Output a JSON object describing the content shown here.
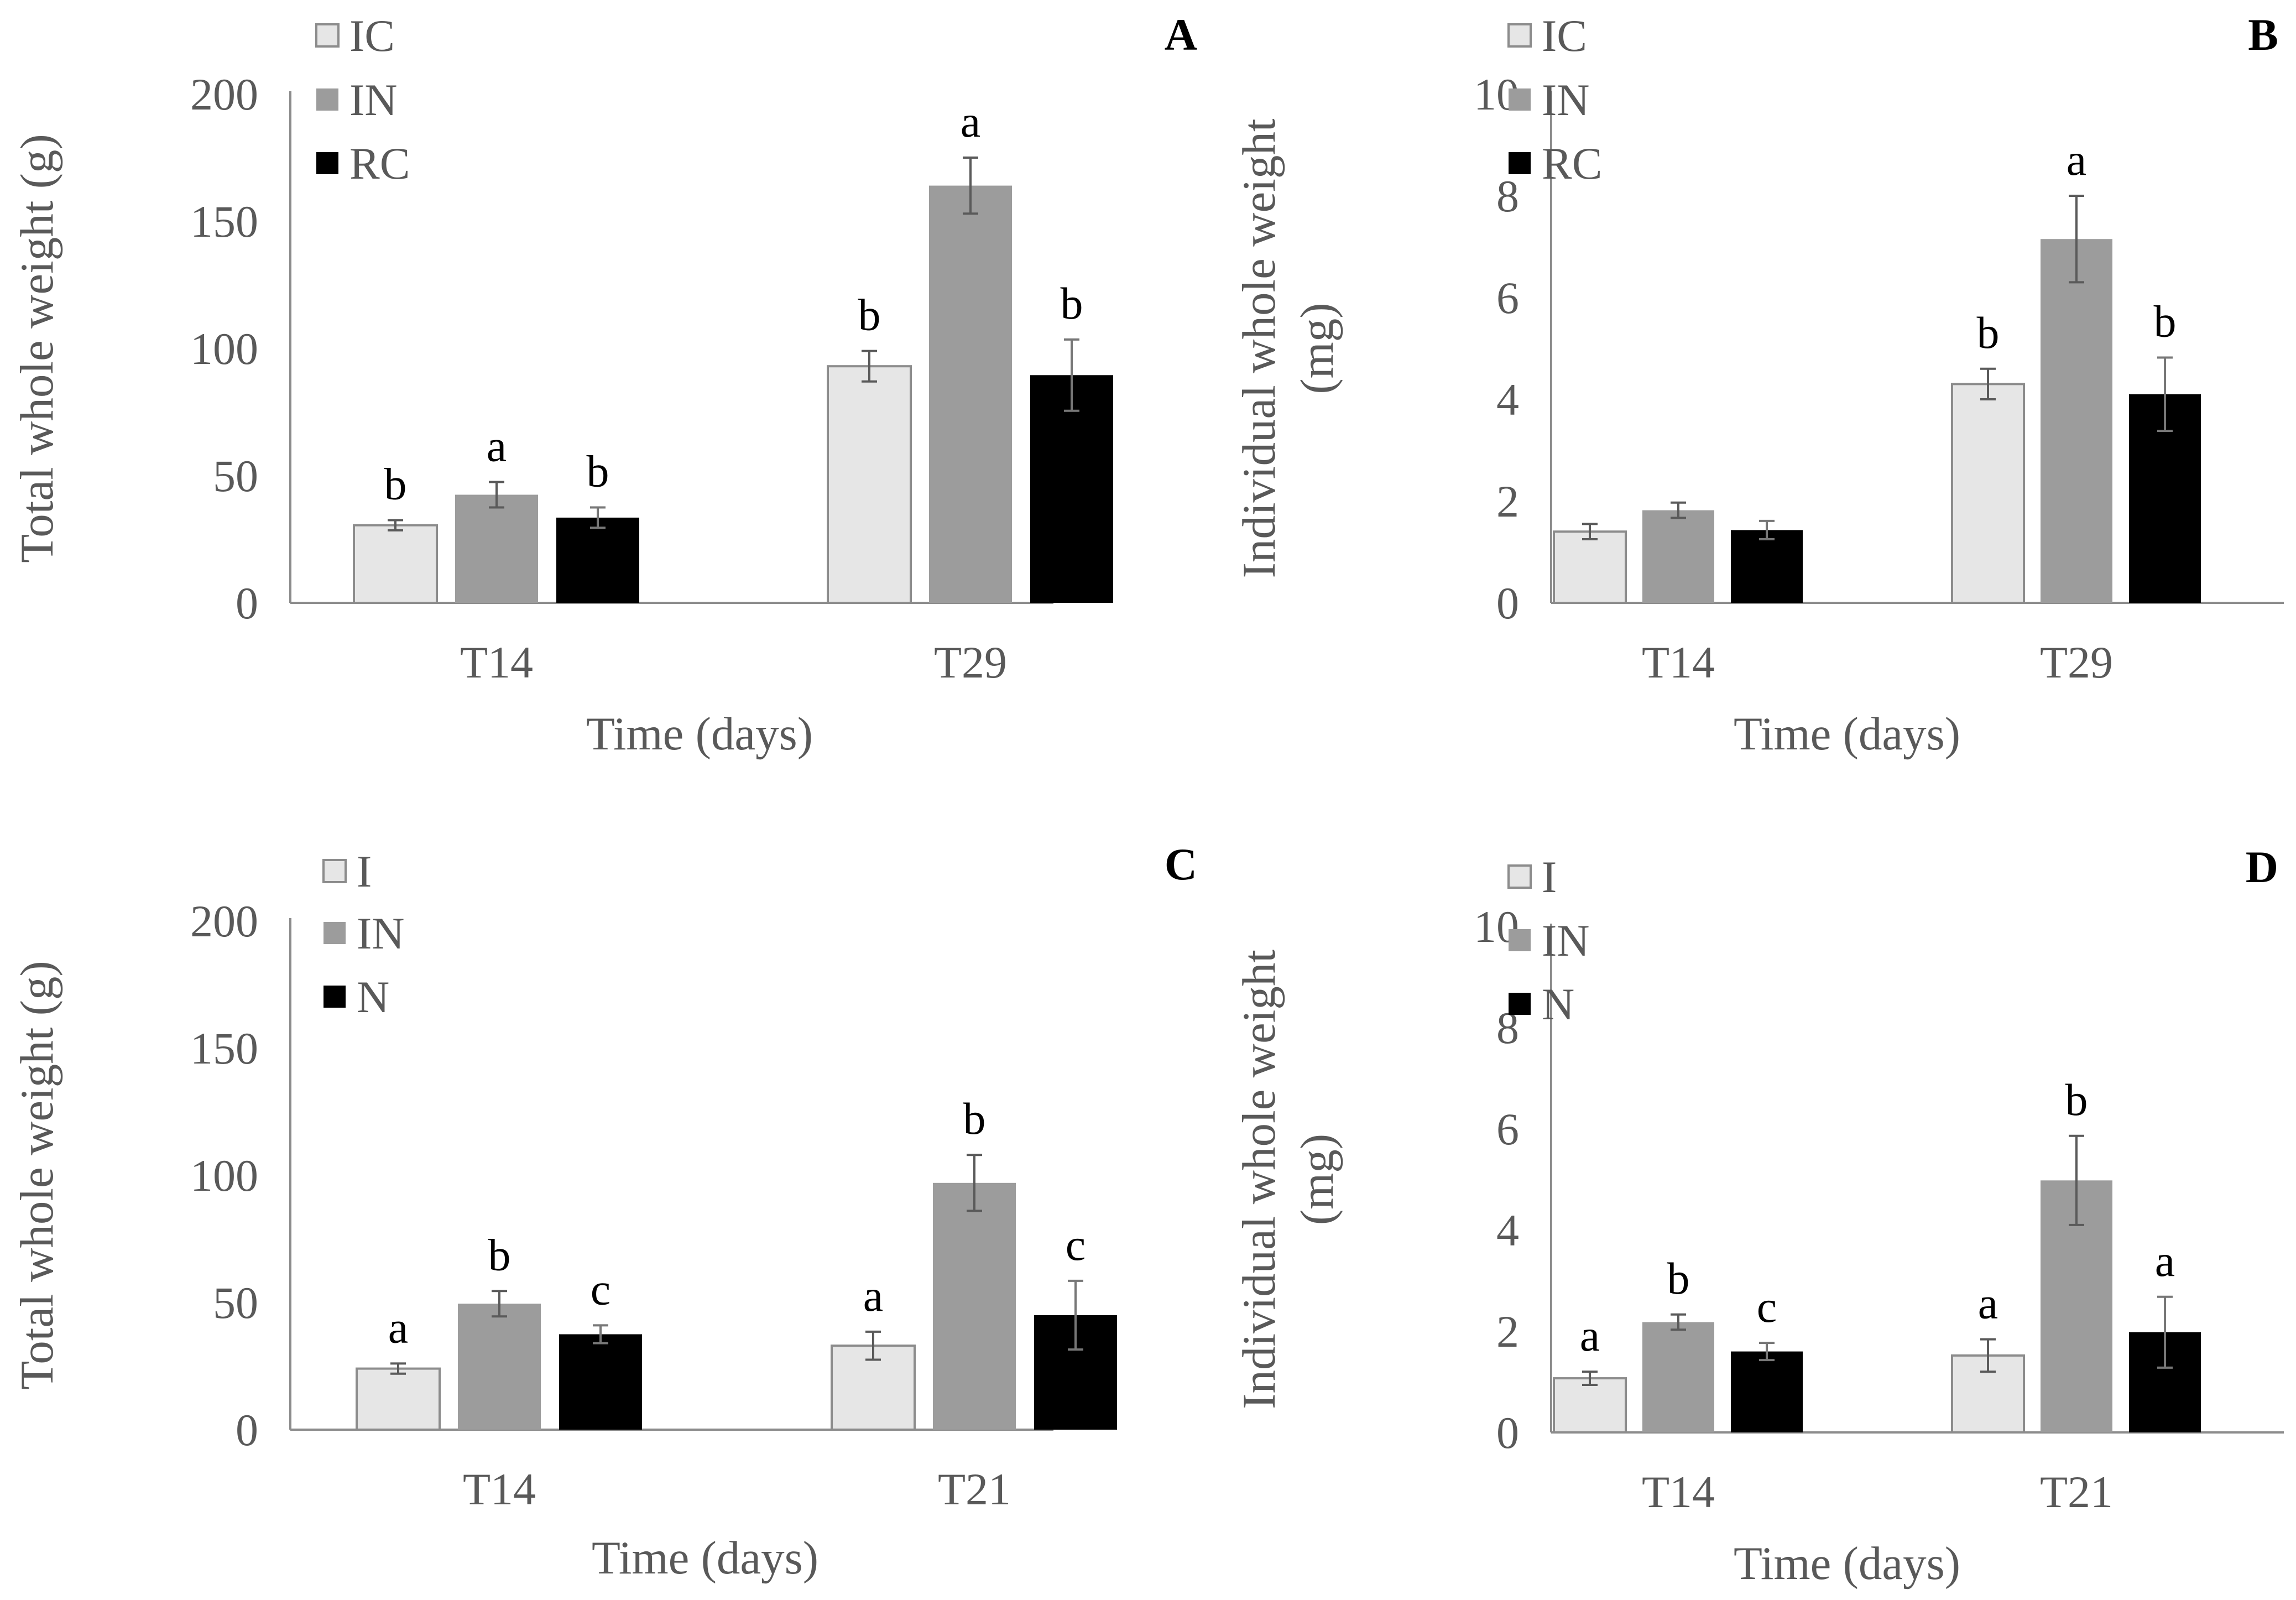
{
  "figure_colors": {
    "light": "#e6e6e6",
    "mid": "#9c9c9c",
    "dark": "#000000"
  },
  "chart_data": [
    {
      "type": "bar",
      "panel": "A",
      "ylabel": [
        "Total whole weight (g)"
      ],
      "xlabel": "Time (days)",
      "ylim": [
        0,
        200
      ],
      "yticks": [
        "0",
        "50",
        "100",
        "150",
        "200"
      ],
      "categories": [
        "T14",
        "T29"
      ],
      "series": [
        {
          "name": "IC",
          "color": "#e6e6e6",
          "values": [
            30.5,
            93
          ],
          "errors": [
            2,
            6
          ],
          "labels": [
            "b",
            "b"
          ]
        },
        {
          "name": "IN",
          "color": "#9c9c9c",
          "values": [
            42.5,
            164
          ],
          "errors": [
            5,
            11
          ],
          "labels": [
            "a",
            "a"
          ]
        },
        {
          "name": "RC",
          "color": "#000000",
          "values": [
            33.5,
            89.5
          ],
          "errors": [
            4,
            14
          ],
          "labels": [
            "b",
            "b"
          ]
        }
      ]
    },
    {
      "type": "bar",
      "panel": "B",
      "ylabel": [
        "Individual whole weight",
        "(mg)"
      ],
      "xlabel": "Time (days)",
      "ylim": [
        0,
        10
      ],
      "yticks": [
        "0",
        "2",
        "4",
        "6",
        "8",
        "10"
      ],
      "categories": [
        "T14",
        "T29"
      ],
      "series": [
        {
          "name": "IC",
          "color": "#e6e6e6",
          "values": [
            1.4,
            4.3
          ],
          "errors": [
            0.15,
            0.3
          ],
          "labels": [
            "",
            "b"
          ]
        },
        {
          "name": "IN",
          "color": "#9c9c9c",
          "values": [
            1.82,
            7.15
          ],
          "errors": [
            0.15,
            0.85
          ],
          "labels": [
            "",
            "a"
          ]
        },
        {
          "name": "RC",
          "color": "#000000",
          "values": [
            1.43,
            4.1
          ],
          "errors": [
            0.18,
            0.72
          ],
          "labels": [
            "",
            "b"
          ]
        }
      ]
    },
    {
      "type": "bar",
      "panel": "C",
      "ylabel": [
        "Total whole weight (g)"
      ],
      "xlabel": "Time (days)",
      "ylim": [
        0,
        200
      ],
      "yticks": [
        "0",
        "50",
        "100",
        "150",
        "200"
      ],
      "categories": [
        "T14",
        "T21"
      ],
      "series": [
        {
          "name": "I",
          "color": "#e6e6e6",
          "values": [
            24,
            33
          ],
          "errors": [
            2,
            5.5
          ],
          "labels": [
            "a",
            "a"
          ]
        },
        {
          "name": "IN",
          "color": "#9c9c9c",
          "values": [
            49.5,
            97
          ],
          "errors": [
            5,
            11
          ],
          "labels": [
            "b",
            "b"
          ]
        },
        {
          "name": "N",
          "color": "#000000",
          "values": [
            37.5,
            45
          ],
          "errors": [
            3.5,
            13.5
          ],
          "labels": [
            "c",
            "c"
          ]
        }
      ]
    },
    {
      "type": "bar",
      "panel": "D",
      "ylabel": [
        "Individual whole weight",
        "(mg)"
      ],
      "xlabel": "Time (days)",
      "ylim": [
        0,
        10
      ],
      "yticks": [
        "0",
        "2",
        "4",
        "6",
        "8",
        "10"
      ],
      "categories": [
        "T14",
        "T21"
      ],
      "series": [
        {
          "name": "I",
          "color": "#e6e6e6",
          "values": [
            1.07,
            1.52
          ],
          "errors": [
            0.13,
            0.32
          ],
          "labels": [
            "a",
            "a"
          ]
        },
        {
          "name": "IN",
          "color": "#9c9c9c",
          "values": [
            2.18,
            4.98
          ],
          "errors": [
            0.15,
            0.88
          ],
          "labels": [
            "b",
            "b"
          ]
        },
        {
          "name": "N",
          "color": "#000000",
          "values": [
            1.6,
            1.98
          ],
          "errors": [
            0.17,
            0.7
          ],
          "labels": [
            "c",
            "a"
          ]
        }
      ]
    }
  ]
}
